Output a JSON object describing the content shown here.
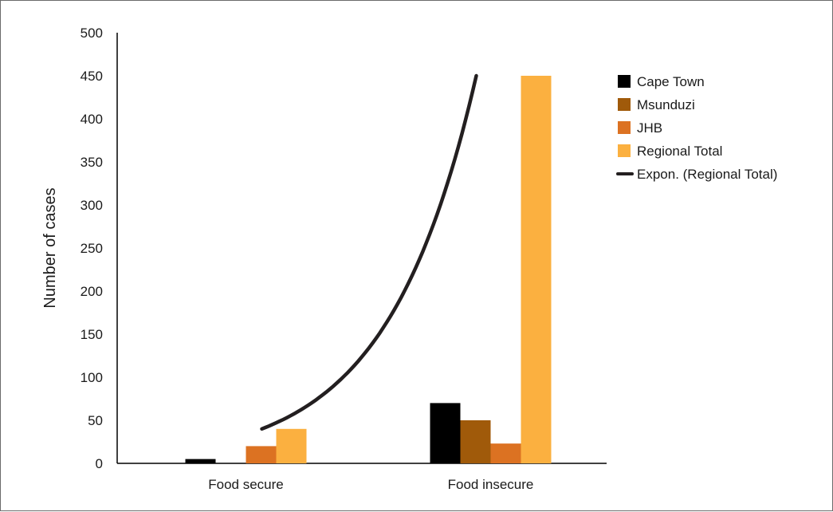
{
  "chart_data": {
    "type": "bar",
    "title": "",
    "xlabel": "",
    "ylabel": "Number of cases",
    "ylim": [
      0,
      500
    ],
    "yticks": [
      0,
      50,
      100,
      150,
      200,
      250,
      300,
      350,
      400,
      450,
      500
    ],
    "categories": [
      "Food secure",
      "Food insecure"
    ],
    "series": [
      {
        "name": "Cape Town",
        "values": [
          5,
          70
        ],
        "color": "#000000"
      },
      {
        "name": "Msunduzi",
        "values": [
          0,
          50
        ],
        "color": "#a05a0a"
      },
      {
        "name": "JHB",
        "values": [
          20,
          23
        ],
        "color": "#dc7222"
      },
      {
        "name": "Regional Total",
        "values": [
          40,
          450
        ],
        "color": "#fbb040"
      }
    ],
    "trendline": {
      "name": "Expon. (Regional Total)",
      "type": "exponential",
      "based_on": "Regional Total",
      "values": [
        40,
        450
      ],
      "color": "#231f20"
    },
    "legend_position": "right",
    "grid": false
  }
}
